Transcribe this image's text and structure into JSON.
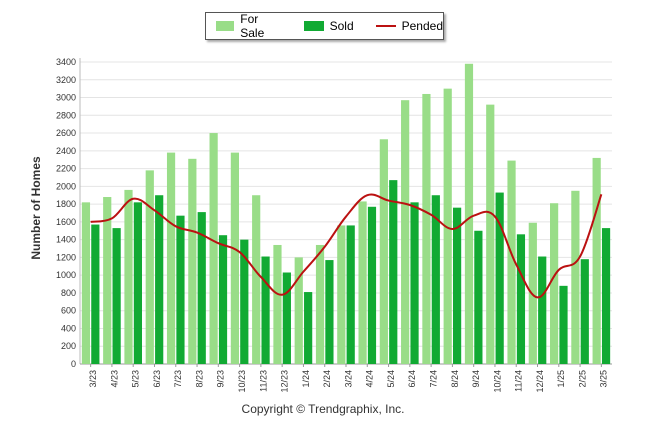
{
  "chart_data": {
    "type": "bar",
    "categories": [
      "3/23",
      "4/23",
      "5/23",
      "6/23",
      "7/23",
      "8/23",
      "9/23",
      "10/23",
      "11/23",
      "12/23",
      "1/24",
      "2/24",
      "3/24",
      "4/24",
      "5/24",
      "6/24",
      "7/24",
      "8/24",
      "9/24",
      "10/24",
      "11/24",
      "12/24",
      "1/25",
      "2/25",
      "3/25"
    ],
    "series": [
      {
        "name": "For Sale",
        "kind": "bar",
        "color": "#99dd88",
        "values": [
          1820,
          1880,
          1960,
          2180,
          2380,
          2310,
          2600,
          2380,
          1900,
          1340,
          1200,
          1340,
          1560,
          1830,
          2530,
          2970,
          3040,
          3100,
          3380,
          2920,
          2290,
          1590,
          1810,
          1950,
          2320
        ]
      },
      {
        "name": "Sold",
        "kind": "bar",
        "color": "#11aa33",
        "values": [
          1570,
          1530,
          1820,
          1900,
          1670,
          1710,
          1450,
          1400,
          1210,
          1030,
          810,
          1170,
          1560,
          1770,
          2070,
          1820,
          1900,
          1760,
          1500,
          1930,
          1460,
          1210,
          880,
          1180,
          1530
        ]
      },
      {
        "name": "Pended",
        "kind": "line",
        "color": "#bb1111",
        "values": [
          1600,
          1640,
          1860,
          1730,
          1550,
          1480,
          1360,
          1260,
          980,
          780,
          1040,
          1320,
          1660,
          1900,
          1840,
          1790,
          1680,
          1520,
          1670,
          1660,
          1120,
          750,
          1060,
          1210,
          1910
        ]
      }
    ],
    "title": "",
    "xlabel": "",
    "ylabel": "Number of Homes",
    "ylim": [
      0,
      3400
    ],
    "yticks": [
      0,
      200,
      400,
      600,
      800,
      1000,
      1200,
      1400,
      1600,
      1800,
      2000,
      2200,
      2400,
      2600,
      2800,
      3000,
      3200,
      3400
    ],
    "grid": true,
    "legend": "top-center"
  },
  "copyright": "Copyright © Trendgraphix, Inc."
}
